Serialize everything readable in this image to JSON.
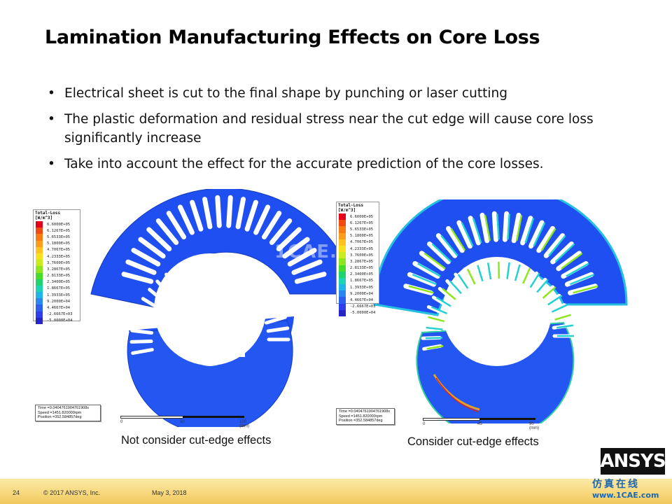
{
  "slide": {
    "title": "Lamination Manufacturing Effects on Core Loss",
    "bullets": [
      "Electrical sheet is cut to the final shape by punching or laser cutting",
      "The plastic deformation and residual stress near the cut edge will cause core loss significantly increase",
      "Take into account the effect for the accurate prediction of the core losses."
    ]
  },
  "legend": {
    "title_line1": "Total-Loss",
    "title_line2": "[W/m^3]",
    "values": [
      "6.6000E+05",
      "6.1267E+05",
      "5.6533E+05",
      "5.1800E+05",
      "4.7067E+05",
      "4.2333E+05",
      "3.7600E+05",
      "3.2867E+05",
      "2.8133E+05",
      "2.3400E+05",
      "1.8667E+05",
      "1.3933E+05",
      "9.2000E+04",
      "4.4667E+04",
      "-2.6667E+03",
      "-5.0000E+04"
    ],
    "colors": [
      "#e3001b",
      "#f04a10",
      "#f77a12",
      "#fb9c1c",
      "#ffc21e",
      "#f5e21c",
      "#c8ec1e",
      "#8de61e",
      "#47dc2a",
      "#1ed46e",
      "#1cd3b4",
      "#1fb5e9",
      "#2a86f0",
      "#2c5ff0",
      "#2f3ee8",
      "#2525c8"
    ]
  },
  "left_figure": {
    "info": [
      "Time  =0.0404761904761908s",
      "Speed  =1451.820000rpm",
      "Position =352.584857deg"
    ],
    "scale_ticks": [
      "0",
      "50",
      "100 (mm)"
    ],
    "caption": "Not consider cut-edge effects"
  },
  "right_figure": {
    "info": [
      "Time  =0.0404761904761908s",
      "Speed  =1451.820000rpm",
      "Position =352.584857deg"
    ],
    "scale_ticks": [
      "0",
      "45",
      "90 (mm)"
    ],
    "caption": "Consider cut-edge effects"
  },
  "watermark_center": "1CAE.COM",
  "footer": {
    "page_number": "24",
    "copyright": "© 2017 ANSYS, Inc.",
    "date": "May 3, 2018",
    "logo": "ANSYS",
    "watermark_cn": "仿真在线",
    "watermark_url": "www.1CAE.com"
  }
}
